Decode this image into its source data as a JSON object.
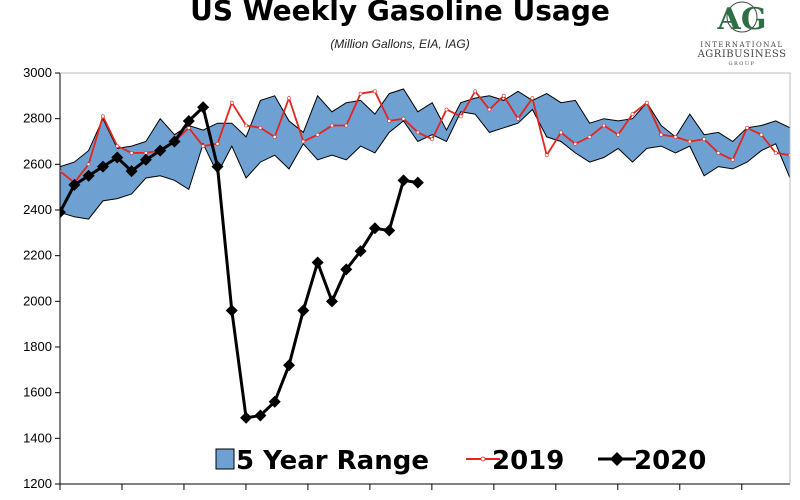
{
  "page": {
    "title": "US Weekly Gasoline Usage",
    "subtitle": "(Million Gallons, EIA, IAG)"
  },
  "logo": {
    "letters": "AG",
    "line1": "INTERNATIONAL",
    "line2": "AGRIBUSINESS",
    "line3": "GROUP"
  },
  "colors": {
    "range_fill": "#6fa0d2",
    "range_edge": "#000000",
    "series_2019": "#e0261e",
    "series_2020": "#000000",
    "logo_green": "#2f6f46"
  },
  "chart_data": {
    "type": "line",
    "title": "US Weekly Gasoline Usage",
    "subtitle": "(Million Gallons, EIA, IAG)",
    "xlabel": "",
    "ylabel": "",
    "ylim": [
      1200,
      3000
    ],
    "yticks": [
      1200,
      1400,
      1600,
      1800,
      2000,
      2200,
      2400,
      2600,
      2800,
      3000
    ],
    "x_week_count": 52,
    "legend_position": "bottom",
    "grid": false,
    "range": {
      "name": "5 Year Range",
      "upper": [
        2590,
        2610,
        2660,
        2800,
        2670,
        2680,
        2700,
        2800,
        2730,
        2770,
        2750,
        2780,
        2780,
        2720,
        2880,
        2900,
        2790,
        2740,
        2900,
        2830,
        2870,
        2880,
        2820,
        2910,
        2930,
        2830,
        2870,
        2750,
        2870,
        2890,
        2900,
        2880,
        2920,
        2880,
        2910,
        2870,
        2880,
        2780,
        2800,
        2790,
        2800,
        2870,
        2770,
        2720,
        2820,
        2730,
        2740,
        2700,
        2760,
        2770,
        2790,
        2760
      ],
      "lower": [
        2390,
        2370,
        2360,
        2440,
        2450,
        2470,
        2540,
        2550,
        2530,
        2490,
        2690,
        2560,
        2680,
        2540,
        2610,
        2640,
        2580,
        2690,
        2620,
        2640,
        2620,
        2680,
        2650,
        2740,
        2790,
        2700,
        2730,
        2700,
        2830,
        2820,
        2740,
        2760,
        2780,
        2840,
        2720,
        2700,
        2650,
        2610,
        2630,
        2670,
        2610,
        2670,
        2680,
        2650,
        2680,
        2550,
        2590,
        2580,
        2610,
        2660,
        2690,
        2540
      ]
    },
    "series": [
      {
        "name": "2019",
        "values": [
          2570,
          2520,
          2600,
          2810,
          2680,
          2650,
          2650,
          2660,
          2700,
          2760,
          2680,
          2690,
          2870,
          2770,
          2760,
          2720,
          2890,
          2700,
          2730,
          2770,
          2770,
          2910,
          2920,
          2790,
          2800,
          2740,
          2710,
          2840,
          2810,
          2920,
          2840,
          2900,
          2800,
          2890,
          2640,
          2740,
          2690,
          2720,
          2770,
          2730,
          2820,
          2870,
          2730,
          2720,
          2700,
          2710,
          2650,
          2620,
          2760,
          2730,
          2650,
          2640
        ]
      },
      {
        "name": "2020",
        "values": [
          2390,
          2510,
          2550,
          2590,
          2630,
          2570,
          2620,
          2660,
          2700,
          2790,
          2850,
          2590,
          1960,
          1490,
          1500,
          1560,
          1720,
          1960,
          2170,
          2000,
          2140,
          2220,
          2320,
          2310,
          2530,
          2520
        ]
      }
    ]
  }
}
